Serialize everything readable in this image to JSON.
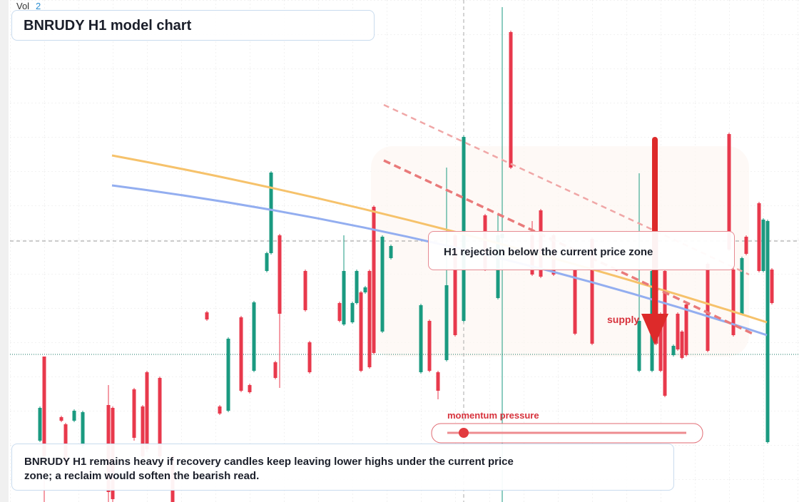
{
  "chart_data": {
    "type": "candlestick",
    "title": "BNRUDY H1 model chart",
    "volume_label": "Vol",
    "volume_value": "2",
    "callout": "H1 rejection below the current price zone",
    "zone_label": "supply",
    "gauge_label": "momentum pressure",
    "caption": "BNRUDY H1 remains heavy if recovery candles keep leaving lower highs under the current price zone; a reclaim would soften the bearish read.",
    "up_color": "#1a9a80",
    "down_color": "#e8394c",
    "xlim": [
      -7,
      177
    ],
    "ylim": [
      0,
      704
    ],
    "x": [
      0,
      1,
      5,
      6,
      8,
      10,
      16,
      17,
      22,
      24,
      25,
      28,
      31,
      39,
      42,
      44,
      47,
      49,
      50,
      53,
      54,
      55,
      56,
      62,
      63,
      70,
      71,
      73,
      74,
      75,
      76,
      77,
      78,
      80,
      82,
      89,
      91,
      93,
      95,
      97,
      99,
      104,
      107,
      108,
      110,
      115,
      117,
      120,
      125,
      129,
      140,
      143,
      144,
      145,
      146,
      148,
      149,
      150,
      151,
      156,
      161,
      162,
      164,
      165,
      168,
      169,
      170,
      171
    ],
    "open": [
      86,
      204,
      119,
      109,
      114,
      79,
      136,
      132,
      158,
      134,
      182,
      174,
      64,
      266,
      134,
      128,
      259,
      164,
      184,
      324,
      349,
      196,
      374,
      324,
      224,
      279,
      249,
      252,
      279,
      294,
      294,
      324,
      414,
      239,
      342,
      182,
      254,
      182,
      199,
      374,
      254,
      402,
      286,
      370,
      659,
      374,
      409,
      374,
      326,
      369,
      184,
      184,
      379,
      264,
      324,
      206,
      264,
      239,
      277,
      334,
      516,
      326,
      264,
      372,
      419,
      324,
      84,
      326
    ],
    "high": [
      134,
      204,
      121,
      111,
      130,
      128,
      164,
      134,
      160,
      136,
      184,
      176,
      66,
      268,
      136,
      231,
      261,
      166,
      282,
      351,
      464,
      198,
      376,
      326,
      226,
      281,
      374,
      281,
      326,
      296,
      303,
      326,
      416,
      374,
      361,
      278,
      256,
      184,
      469,
      376,
      514,
      404,
      404,
      694,
      661,
      394,
      411,
      376,
      328,
      371,
      461,
      326,
      381,
      266,
      326,
      221,
      266,
      241,
      279,
      336,
      518,
      328,
      344,
      374,
      421,
      398,
      396,
      328
    ],
    "low": [
      84,
      0,
      112,
      50,
      112,
      76,
      0,
      0,
      86,
      60,
      70,
      60,
      0,
      254,
      122,
      126,
      154,
      152,
      182,
      322,
      347,
      172,
      160,
      267,
      180,
      252,
      247,
      250,
      277,
      182,
      292,
      187,
      207,
      237,
      340,
      180,
      182,
      144,
      197,
      232,
      252,
      324,
      284,
      0,
      467,
      317,
      314,
      317,
      234,
      220,
      182,
      182,
      220,
      182,
      147,
      204,
      212,
      200,
      204,
      210,
      352,
      232,
      262,
      346,
      322,
      322,
      82,
      277
    ],
    "close": [
      132,
      64,
      114,
      54,
      128,
      126,
      14,
      4,
      90,
      64,
      74,
      64,
      0,
      256,
      124,
      229,
      156,
      154,
      280,
      349,
      462,
      174,
      264,
      269,
      182,
      254,
      324,
      279,
      324,
      184,
      301,
      189,
      209,
      372,
      359,
      276,
      184,
      156,
      304,
      234,
      512,
      326,
      374,
      376,
      469,
      319,
      316,
      319,
      236,
      222,
      254,
      324,
      222,
      184,
      149,
      219,
      214,
      202,
      206,
      212,
      354,
      234,
      342,
      348,
      324,
      396,
      394,
      279
    ]
  }
}
